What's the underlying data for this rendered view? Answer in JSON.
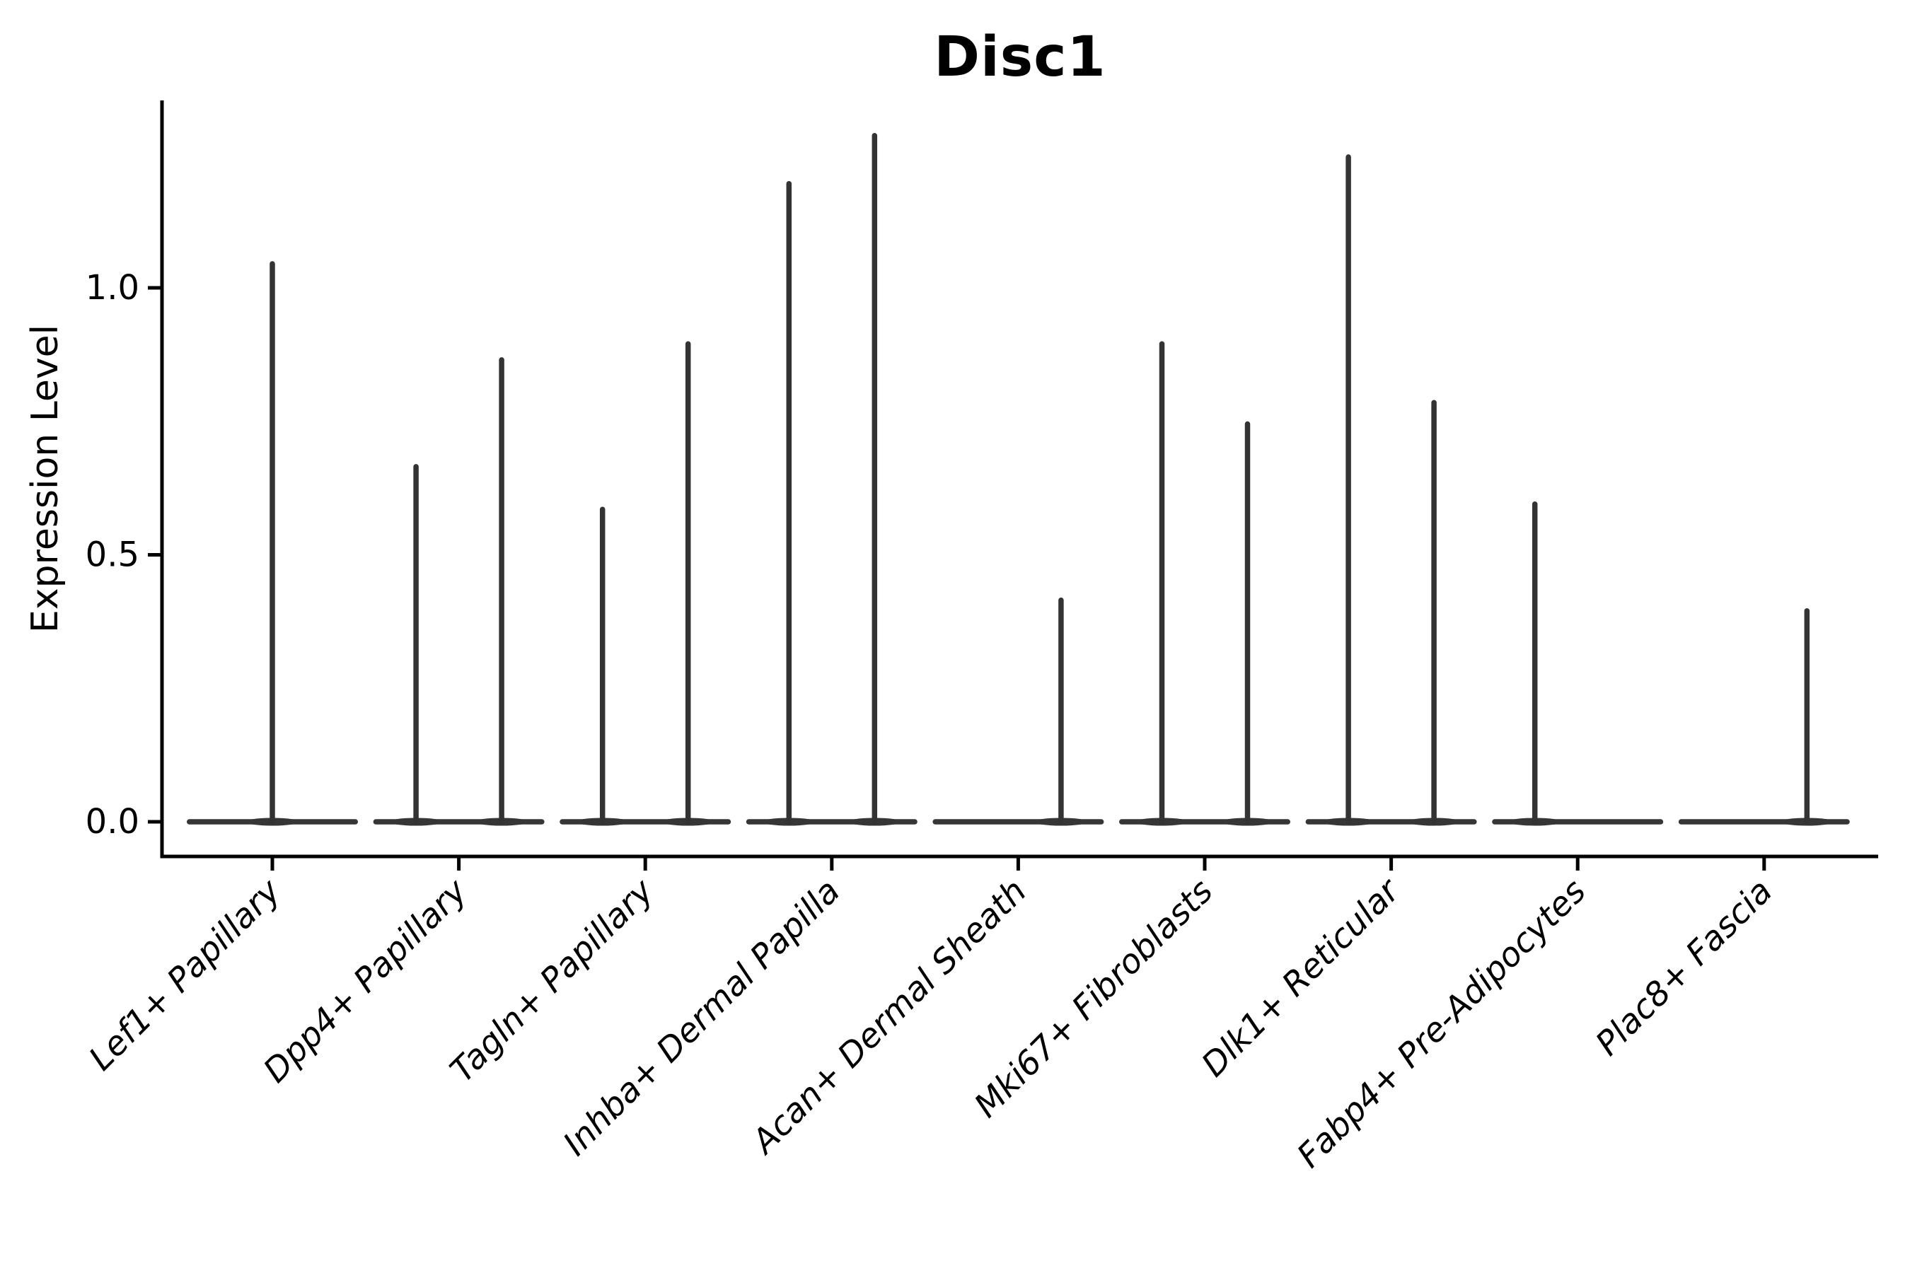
{
  "figure": {
    "background": "#ffffff",
    "axis_color": "#000000",
    "violin_color": "#333333",
    "violin_fill": "#363636"
  },
  "chart_data": {
    "type": "violin",
    "title": "Disc1",
    "xlabel": "",
    "ylabel": "Expression Level",
    "ylim": [
      -0.07,
      1.35
    ],
    "grid": false,
    "legend": "none",
    "y_ticks": [
      {
        "label": "0.0",
        "value": 0.0
      },
      {
        "label": "0.5",
        "value": 0.5
      },
      {
        "label": "1.0",
        "value": 1.0
      }
    ],
    "categories": [
      "Lef1+ Papillary",
      "Dpp4+ Papillary",
      "Tagln+ Papillary",
      "Inhba+ Dermal Papilla",
      "Acan+ Dermal Sheath",
      "Mki67+ Fibroblasts",
      "Dlk1+ Reticular",
      "Fabp4+ Pre-Adipocytes",
      "Plac8+ Fascia"
    ],
    "violins": [
      {
        "spikes": [
          {
            "side": "center",
            "peak": 1.05
          }
        ]
      },
      {
        "spikes": [
          {
            "side": "left",
            "peak": 0.67
          },
          {
            "side": "right",
            "peak": 0.87
          }
        ]
      },
      {
        "spikes": [
          {
            "side": "left",
            "peak": 0.59
          },
          {
            "side": "right",
            "peak": 0.9
          }
        ]
      },
      {
        "spikes": [
          {
            "side": "left",
            "peak": 1.2
          },
          {
            "side": "right",
            "peak": 1.29
          }
        ]
      },
      {
        "spikes": [
          {
            "side": "left",
            "peak": 0.0
          },
          {
            "side": "right",
            "peak": 0.42
          }
        ]
      },
      {
        "spikes": [
          {
            "side": "left",
            "peak": 0.9
          },
          {
            "side": "right",
            "peak": 0.75
          }
        ]
      },
      {
        "spikes": [
          {
            "side": "left",
            "peak": 1.25
          },
          {
            "side": "right",
            "peak": 0.79
          }
        ]
      },
      {
        "spikes": [
          {
            "side": "left",
            "peak": 0.6
          },
          {
            "side": "right",
            "peak": 0.0
          }
        ]
      },
      {
        "spikes": [
          {
            "side": "left",
            "peak": 0.0
          },
          {
            "side": "right",
            "peak": 0.4
          }
        ]
      }
    ],
    "description": "Violin plot of Disc1 expression; near-zero-width violins appear as flat baselines at 0 with thin density spikes."
  }
}
